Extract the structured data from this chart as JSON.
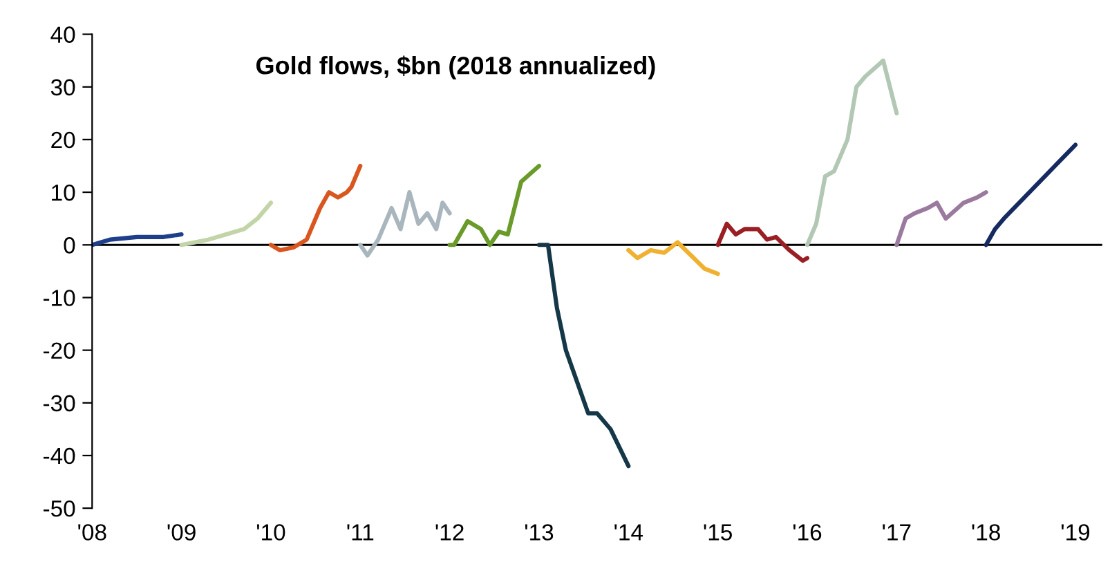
{
  "chart_data": {
    "type": "line",
    "title": "Gold flows, $bn (2018 annualized)",
    "xlim": [
      2008,
      2019.3
    ],
    "xticks": [
      {
        "value": 2008,
        "label": "'08"
      },
      {
        "value": 2009,
        "label": "'09"
      },
      {
        "value": 2010,
        "label": "'10"
      },
      {
        "value": 2011,
        "label": "'11"
      },
      {
        "value": 2012,
        "label": "'12"
      },
      {
        "value": 2013,
        "label": "'13"
      },
      {
        "value": 2014,
        "label": "'14"
      },
      {
        "value": 2015,
        "label": "'15"
      },
      {
        "value": 2016,
        "label": "'16"
      },
      {
        "value": 2017,
        "label": "'17"
      },
      {
        "value": 2018,
        "label": "'18"
      },
      {
        "value": 2019,
        "label": "'19"
      }
    ],
    "ylim": [
      -50,
      40
    ],
    "yticks": [
      -50,
      -40,
      -30,
      -20,
      -10,
      0,
      10,
      20,
      30,
      40
    ],
    "grid": false,
    "legend": false,
    "marker": "none",
    "line_style": "solid",
    "ref_lines": [
      {
        "axis": "y",
        "value": 0,
        "color": "#000000"
      }
    ],
    "series": [
      {
        "color": "#1f3f8a",
        "x": [
          2008.0,
          2008.1,
          2008.2,
          2008.5,
          2008.8,
          2009.0
        ],
        "values": [
          0,
          0.5,
          1,
          1.5,
          1.5,
          2
        ]
      },
      {
        "color": "#c2d4a8",
        "x": [
          2009.0,
          2009.3,
          2009.5,
          2009.7,
          2009.85,
          2010.0
        ],
        "values": [
          0,
          1,
          2,
          3,
          5,
          8
        ]
      },
      {
        "color": "#d9561f",
        "x": [
          2010.0,
          2010.1,
          2010.25,
          2010.4,
          2010.55,
          2010.65,
          2010.75,
          2010.85,
          2010.9,
          2011.0
        ],
        "values": [
          0,
          -1,
          -0.5,
          1,
          7,
          10,
          9,
          10,
          11,
          15
        ]
      },
      {
        "color": "#a9b6be",
        "x": [
          2011.0,
          2011.08,
          2011.2,
          2011.35,
          2011.45,
          2011.55,
          2011.65,
          2011.75,
          2011.85,
          2011.92,
          2012.0
        ],
        "values": [
          0,
          -2,
          1,
          7,
          3,
          10,
          4,
          6,
          3,
          8,
          6
        ]
      },
      {
        "color": "#6a9a2a",
        "x": [
          2012.0,
          2012.05,
          2012.2,
          2012.35,
          2012.45,
          2012.55,
          2012.65,
          2012.8,
          2013.0
        ],
        "values": [
          0,
          0,
          4.5,
          3,
          0,
          2.5,
          2,
          12,
          15
        ]
      },
      {
        "color": "#143848",
        "x": [
          2013.0,
          2013.1,
          2013.2,
          2013.3,
          2013.55,
          2013.65,
          2013.8,
          2014.0
        ],
        "values": [
          0,
          0,
          -12,
          -20,
          -32,
          -32,
          -35,
          -42
        ]
      },
      {
        "color": "#f0b030",
        "x": [
          2014.0,
          2014.1,
          2014.25,
          2014.4,
          2014.55,
          2014.7,
          2014.85,
          2015.0
        ],
        "values": [
          -1,
          -2.5,
          -1,
          -1.5,
          0.5,
          -2,
          -4.5,
          -5.5
        ]
      },
      {
        "color": "#9a1f24",
        "x": [
          2015.0,
          2015.1,
          2015.2,
          2015.3,
          2015.45,
          2015.55,
          2015.65,
          2015.8,
          2015.95,
          2016.0
        ],
        "values": [
          0,
          4,
          2,
          3,
          3,
          1,
          1.5,
          -1,
          -3,
          -2.5
        ]
      },
      {
        "color": "#b2c8b4",
        "x": [
          2016.0,
          2016.1,
          2016.2,
          2016.3,
          2016.45,
          2016.55,
          2016.65,
          2016.85,
          2017.0
        ],
        "values": [
          0,
          4,
          13,
          14,
          20,
          30,
          32,
          35,
          25
        ]
      },
      {
        "color": "#9a7a9e",
        "x": [
          2017.0,
          2017.1,
          2017.2,
          2017.35,
          2017.45,
          2017.55,
          2017.75,
          2017.9,
          2018.0
        ],
        "values": [
          0,
          5,
          6,
          7,
          8,
          5,
          8,
          9,
          10
        ]
      },
      {
        "color": "#152a60",
        "x": [
          2018.0,
          2018.1,
          2018.2,
          2019.0
        ],
        "values": [
          0,
          3,
          5,
          19
        ]
      }
    ]
  }
}
